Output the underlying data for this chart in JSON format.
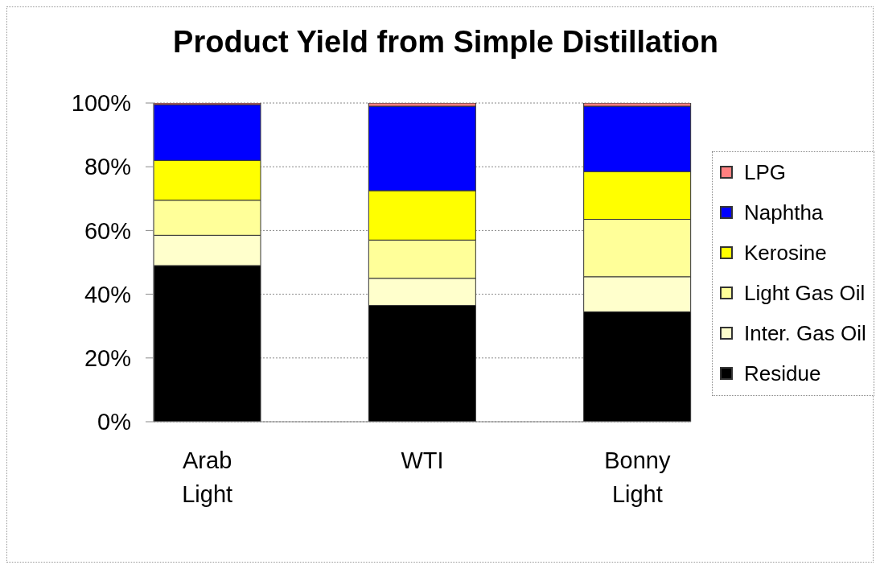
{
  "chart_data": {
    "type": "bar",
    "title": "Product Yield from Simple Distillation",
    "categories": [
      "Arab Light",
      "WTI",
      "Bonny Light"
    ],
    "series": [
      {
        "name": "Residue",
        "color": "#000000",
        "values": [
          49,
          36.5,
          34.5
        ]
      },
      {
        "name": "Inter. Gas Oil",
        "color": "#ffffcc",
        "values": [
          9.5,
          8.5,
          11
        ]
      },
      {
        "name": "Light Gas Oil",
        "color": "#ffff99",
        "values": [
          11,
          12,
          18
        ]
      },
      {
        "name": "Kerosine",
        "color": "#ffff00",
        "values": [
          12.5,
          15.5,
          15
        ]
      },
      {
        "name": "Naphtha",
        "color": "#0000ff",
        "values": [
          17.5,
          26.5,
          20.5
        ]
      },
      {
        "name": "LPG",
        "color": "#ff8080",
        "values": [
          0.5,
          1,
          1
        ]
      }
    ],
    "stacked": true,
    "ylim": [
      0,
      100
    ],
    "yticks": [
      {
        "value": 0,
        "label": "0%"
      },
      {
        "value": 20,
        "label": "20%"
      },
      {
        "value": 40,
        "label": "40%"
      },
      {
        "value": 60,
        "label": "60%"
      },
      {
        "value": 80,
        "label": "80%"
      },
      {
        "value": 100,
        "label": "100%"
      }
    ],
    "grid": "y",
    "legend": "right"
  }
}
